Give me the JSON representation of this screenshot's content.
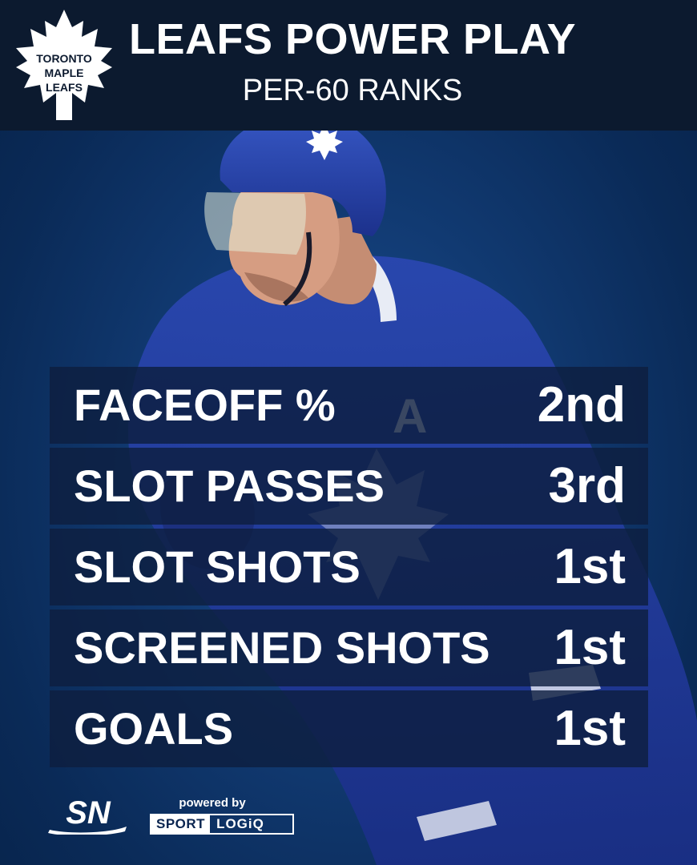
{
  "header": {
    "title": "LEAFS POWER PLAY",
    "subtitle": "PER-60 RANKS"
  },
  "team_logo": {
    "icon": "maple-leaf-icon",
    "text_lines": [
      "TORONTO",
      "MAPLE",
      "LEAFS"
    ],
    "color": "#ffffff"
  },
  "stats": [
    {
      "label": "FACEOFF %",
      "rank": "2nd"
    },
    {
      "label": "SLOT PASSES",
      "rank": "3rd"
    },
    {
      "label": "SLOT SHOTS",
      "rank": "1st"
    },
    {
      "label": "SCREENED SHOTS",
      "rank": "1st"
    },
    {
      "label": "GOALS",
      "rank": "1st"
    }
  ],
  "footer": {
    "network_logo": "SN",
    "powered_by": "powered by",
    "sponsor_part1": "SPORT",
    "sponsor_part2": "LOGiQ"
  },
  "colors": {
    "header_bg": "#0c1a2f",
    "background": "#113a72",
    "jersey": "#1f3a9a",
    "row_bg": "#0e1e40"
  }
}
